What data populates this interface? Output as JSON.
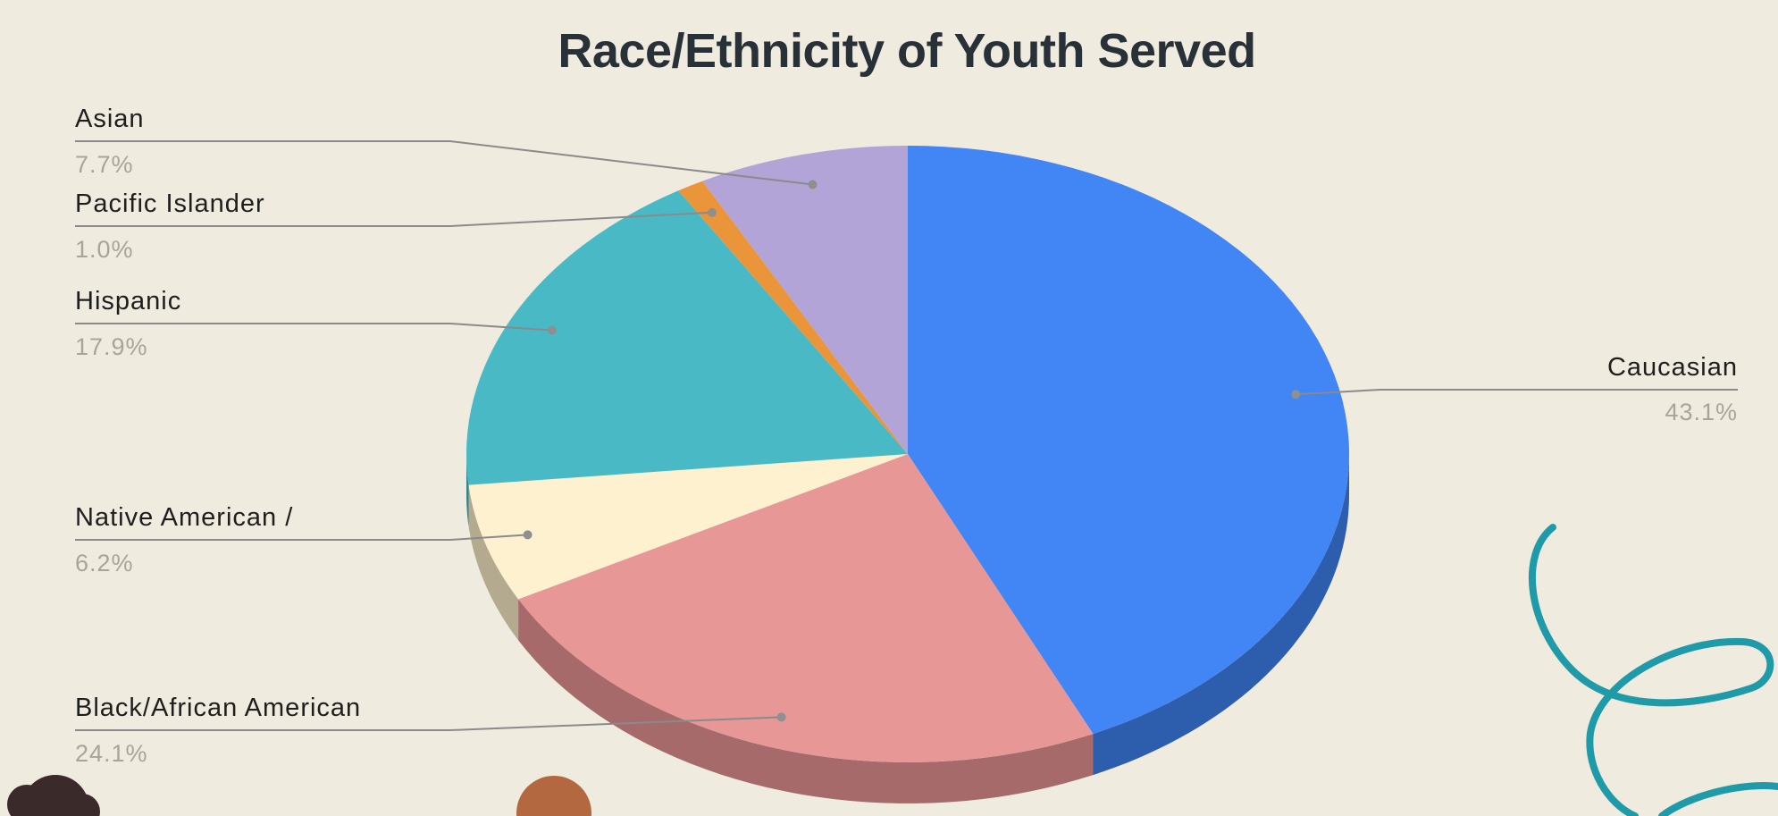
{
  "chart_data": {
    "type": "pie",
    "title": "Race/Ethnicity of Youth Served",
    "slices": [
      {
        "label": "Caucasian",
        "value": 43.1,
        "value_label": "43.1%",
        "color": "#4285f4",
        "side_color": "#2d5dad"
      },
      {
        "label": "Black/African American",
        "value": 24.1,
        "value_label": "24.1%",
        "color": "#e89797",
        "side_color": "#a56a69"
      },
      {
        "label": "Native American /",
        "value": 6.2,
        "value_label": "6.2%",
        "color": "#fdf1cf",
        "side_color": "#b3aa8f"
      },
      {
        "label": "Hispanic",
        "value": 17.9,
        "value_label": "17.9%",
        "color": "#49bac5",
        "side_color": "#33848b"
      },
      {
        "label": "Pacific Islander",
        "value": 1.0,
        "value_label": "1.0%",
        "color": "#ea953a",
        "side_color": "#a56929"
      },
      {
        "label": "Asian",
        "value": 7.7,
        "value_label": "7.7%",
        "color": "#b2a4d6",
        "side_color": "#7e7497"
      }
    ],
    "legend": "none",
    "style": "3d-pie with leader-line labels"
  },
  "colors": {
    "background": "#f0ebdf",
    "title": "#283038",
    "leader_line": "#8a8a8a",
    "decoration": "#1f9aa8"
  }
}
